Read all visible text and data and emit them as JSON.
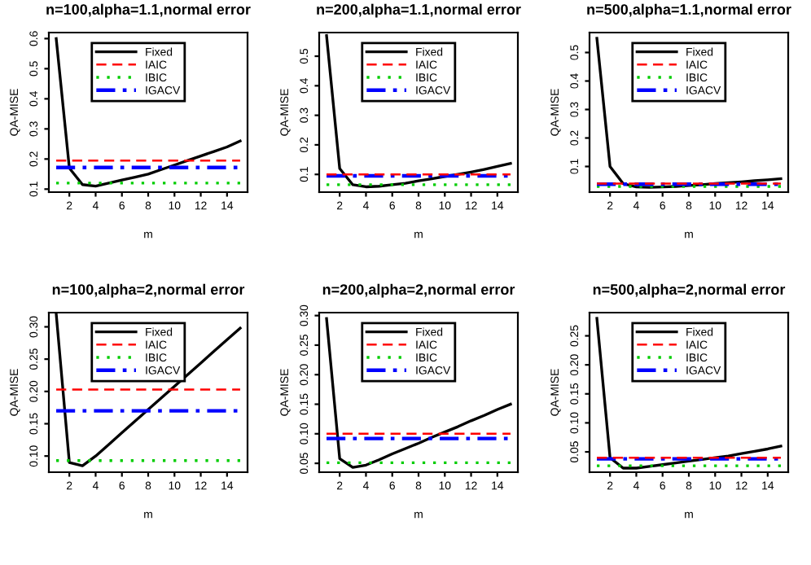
{
  "chart_data": [
    {
      "type": "line",
      "title": "n=100,alpha=1.1,normal error",
      "xlabel": "m",
      "ylabel": "QA-MISE",
      "xlim": [
        0.44,
        15.56
      ],
      "xticks": [
        2,
        4,
        6,
        8,
        10,
        12,
        14
      ],
      "ylim": [
        0.09,
        0.62
      ],
      "yticks": [
        0.1,
        0.2,
        0.3,
        0.4,
        0.5,
        0.6
      ],
      "legend": "top",
      "grid": false,
      "series": [
        {
          "name": "Fixed",
          "color": "#000000",
          "line_style": "solid",
          "x": [
            1,
            2,
            3,
            4,
            5,
            6,
            7,
            8,
            9,
            10,
            11,
            12,
            13,
            14,
            15
          ],
          "values": [
            0.6,
            0.17,
            0.115,
            0.11,
            0.12,
            0.13,
            0.14,
            0.15,
            0.165,
            0.18,
            0.195,
            0.21,
            0.225,
            0.24,
            0.26
          ]
        },
        {
          "name": "IAIC",
          "color": "#ff0000",
          "line_style": "dashed",
          "x": [
            1,
            15
          ],
          "values": [
            0.195,
            0.195
          ]
        },
        {
          "name": "IBIC",
          "color": "#00cd00",
          "line_style": "dotted",
          "x": [
            1,
            15
          ],
          "values": [
            0.12,
            0.12
          ]
        },
        {
          "name": "IGACV",
          "color": "#0000ff",
          "line_style": "dashdot",
          "x": [
            1,
            15
          ],
          "values": [
            0.172,
            0.172
          ]
        }
      ]
    },
    {
      "type": "line",
      "title": "n=200,alpha=1.1,normal error",
      "xlabel": "m",
      "ylabel": "QA-MISE",
      "xlim": [
        0.44,
        15.56
      ],
      "xticks": [
        2,
        4,
        6,
        8,
        10,
        12,
        14
      ],
      "ylim": [
        0.04,
        0.58
      ],
      "yticks": [
        0.1,
        0.2,
        0.3,
        0.4,
        0.5
      ],
      "legend": "top",
      "grid": false,
      "series": [
        {
          "name": "Fixed",
          "color": "#000000",
          "line_style": "solid",
          "x": [
            1,
            2,
            3,
            4,
            5,
            6,
            7,
            8,
            9,
            10,
            11,
            12,
            13,
            14,
            15
          ],
          "values": [
            0.57,
            0.12,
            0.065,
            0.058,
            0.06,
            0.065,
            0.07,
            0.078,
            0.085,
            0.093,
            0.1,
            0.108,
            0.117,
            0.127,
            0.137
          ]
        },
        {
          "name": "IAIC",
          "color": "#ff0000",
          "line_style": "dashed",
          "x": [
            1,
            15
          ],
          "values": [
            0.1,
            0.1
          ]
        },
        {
          "name": "IBIC",
          "color": "#00cd00",
          "line_style": "dotted",
          "x": [
            1,
            15
          ],
          "values": [
            0.065,
            0.065
          ]
        },
        {
          "name": "IGACV",
          "color": "#0000ff",
          "line_style": "dashdot",
          "x": [
            1,
            15
          ],
          "values": [
            0.095,
            0.095
          ]
        }
      ]
    },
    {
      "type": "line",
      "title": "n=500,alpha=1.1,normal error",
      "xlabel": "m",
      "ylabel": "QA-MISE",
      "xlim": [
        0.44,
        15.56
      ],
      "xticks": [
        2,
        4,
        6,
        8,
        10,
        12,
        14
      ],
      "ylim": [
        0.01,
        0.57
      ],
      "yticks": [
        0.1,
        0.2,
        0.3,
        0.4,
        0.5
      ],
      "legend": "top",
      "grid": false,
      "series": [
        {
          "name": "Fixed",
          "color": "#000000",
          "line_style": "solid",
          "x": [
            1,
            2,
            3,
            4,
            5,
            6,
            7,
            8,
            9,
            10,
            11,
            12,
            13,
            14,
            15
          ],
          "values": [
            0.55,
            0.1,
            0.04,
            0.028,
            0.027,
            0.028,
            0.03,
            0.033,
            0.036,
            0.04,
            0.043,
            0.046,
            0.05,
            0.053,
            0.057
          ]
        },
        {
          "name": "IAIC",
          "color": "#ff0000",
          "line_style": "dashed",
          "x": [
            1,
            15
          ],
          "values": [
            0.04,
            0.04
          ]
        },
        {
          "name": "IBIC",
          "color": "#00cd00",
          "line_style": "dotted",
          "x": [
            1,
            15
          ],
          "values": [
            0.03,
            0.03
          ]
        },
        {
          "name": "IGACV",
          "color": "#0000ff",
          "line_style": "dashdot",
          "x": [
            1,
            15
          ],
          "values": [
            0.038,
            0.038
          ]
        }
      ]
    },
    {
      "type": "line",
      "title": "n=100,alpha=2,normal error",
      "xlabel": "m",
      "ylabel": "QA-MISE",
      "xlim": [
        0.44,
        15.56
      ],
      "xticks": [
        2,
        4,
        6,
        8,
        10,
        12,
        14
      ],
      "ylim": [
        0.075,
        0.322
      ],
      "yticks": [
        {
          "value": 0.1,
          "label": "0.10"
        },
        {
          "value": 0.15,
          "label": "0.15"
        },
        {
          "value": 0.2,
          "label": "0.20"
        },
        {
          "value": 0.25,
          "label": "0.25"
        },
        {
          "value": 0.3,
          "label": "0.30"
        }
      ],
      "legend": "top",
      "grid": false,
      "series": [
        {
          "name": "Fixed",
          "color": "#000000",
          "line_style": "solid",
          "x": [
            1,
            2,
            3,
            4,
            5,
            6,
            7,
            8,
            9,
            10,
            11,
            12,
            13,
            14,
            15
          ],
          "values": [
            0.32,
            0.09,
            0.085,
            0.1,
            0.118,
            0.136,
            0.154,
            0.172,
            0.19,
            0.208,
            0.226,
            0.244,
            0.262,
            0.28,
            0.298
          ]
        },
        {
          "name": "IAIC",
          "color": "#ff0000",
          "line_style": "dashed",
          "x": [
            1,
            15
          ],
          "values": [
            0.203,
            0.203
          ]
        },
        {
          "name": "IBIC",
          "color": "#00cd00",
          "line_style": "dotted",
          "x": [
            1,
            15
          ],
          "values": [
            0.093,
            0.093
          ]
        },
        {
          "name": "IGACV",
          "color": "#0000ff",
          "line_style": "dashdot",
          "x": [
            1,
            15
          ],
          "values": [
            0.17,
            0.17
          ]
        }
      ]
    },
    {
      "type": "line",
      "title": "n=200,alpha=2,normal error",
      "xlabel": "m",
      "ylabel": "QA-MISE",
      "xlim": [
        0.44,
        15.56
      ],
      "xticks": [
        2,
        4,
        6,
        8,
        10,
        12,
        14
      ],
      "ylim": [
        0.035,
        0.305
      ],
      "yticks": [
        {
          "value": 0.05,
          "label": "0.05"
        },
        {
          "value": 0.1,
          "label": "0.10"
        },
        {
          "value": 0.15,
          "label": "0.15"
        },
        {
          "value": 0.2,
          "label": "0.20"
        },
        {
          "value": 0.25,
          "label": "0.25"
        },
        {
          "value": 0.3,
          "label": "0.30"
        }
      ],
      "legend": "top",
      "grid": false,
      "series": [
        {
          "name": "Fixed",
          "color": "#000000",
          "line_style": "solid",
          "x": [
            1,
            2,
            3,
            4,
            5,
            6,
            7,
            8,
            9,
            10,
            11,
            12,
            13,
            14,
            15
          ],
          "values": [
            0.295,
            0.058,
            0.043,
            0.047,
            0.056,
            0.066,
            0.075,
            0.084,
            0.094,
            0.103,
            0.112,
            0.122,
            0.131,
            0.141,
            0.15
          ]
        },
        {
          "name": "IAIC",
          "color": "#ff0000",
          "line_style": "dashed",
          "x": [
            1,
            15
          ],
          "values": [
            0.1,
            0.1
          ]
        },
        {
          "name": "IBIC",
          "color": "#00cd00",
          "line_style": "dotted",
          "x": [
            1,
            15
          ],
          "values": [
            0.051,
            0.051
          ]
        },
        {
          "name": "IGACV",
          "color": "#0000ff",
          "line_style": "dashdot",
          "x": [
            1,
            15
          ],
          "values": [
            0.092,
            0.092
          ]
        }
      ]
    },
    {
      "type": "line",
      "title": "n=500,alpha=2,normal error",
      "xlabel": "m",
      "ylabel": "QA-MISE",
      "xlim": [
        0.44,
        15.56
      ],
      "xticks": [
        2,
        4,
        6,
        8,
        10,
        12,
        14
      ],
      "ylim": [
        0.015,
        0.29
      ],
      "yticks": [
        {
          "value": 0.05,
          "label": "0.05"
        },
        {
          "value": 0.1,
          "label": "0.10"
        },
        {
          "value": 0.15,
          "label": "0.15"
        },
        {
          "value": 0.2,
          "label": "0.20"
        },
        {
          "value": 0.25,
          "label": "0.25"
        }
      ],
      "legend": "top",
      "grid": false,
      "series": [
        {
          "name": "Fixed",
          "color": "#000000",
          "line_style": "solid",
          "x": [
            1,
            2,
            3,
            4,
            5,
            6,
            7,
            8,
            9,
            10,
            11,
            12,
            13,
            14,
            15
          ],
          "values": [
            0.28,
            0.04,
            0.022,
            0.022,
            0.025,
            0.028,
            0.031,
            0.034,
            0.037,
            0.04,
            0.043,
            0.047,
            0.051,
            0.055,
            0.06
          ]
        },
        {
          "name": "IAIC",
          "color": "#ff0000",
          "line_style": "dashed",
          "x": [
            1,
            15
          ],
          "values": [
            0.04,
            0.04
          ]
        },
        {
          "name": "IBIC",
          "color": "#00cd00",
          "line_style": "dotted",
          "x": [
            1,
            15
          ],
          "values": [
            0.026,
            0.026
          ]
        },
        {
          "name": "IGACV",
          "color": "#0000ff",
          "line_style": "dashdot",
          "x": [
            1,
            15
          ],
          "values": [
            0.038,
            0.038
          ]
        }
      ]
    }
  ]
}
